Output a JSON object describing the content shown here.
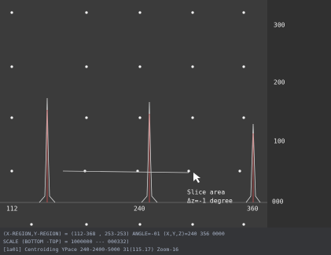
{
  "scale_labels": [
    "300",
    "200",
    "100",
    "000"
  ],
  "bottom_labels": [
    "112",
    "240",
    "360"
  ],
  "annotation": [
    "Slice area",
    "Δz=-1 degree"
  ],
  "status_lines": [
    "(X-REGION,Y-REGION) = (112-368 , 253-253)    ANGLE=-01     (X,Y,Z)=240 356 0000",
    "SCALE (BOTTOM -TOP) = 1000000 --- 000332)",
    "[1a01] Centroiding  YPace  240-2400-5000  31(115.17)  Zoom-16"
  ]
}
